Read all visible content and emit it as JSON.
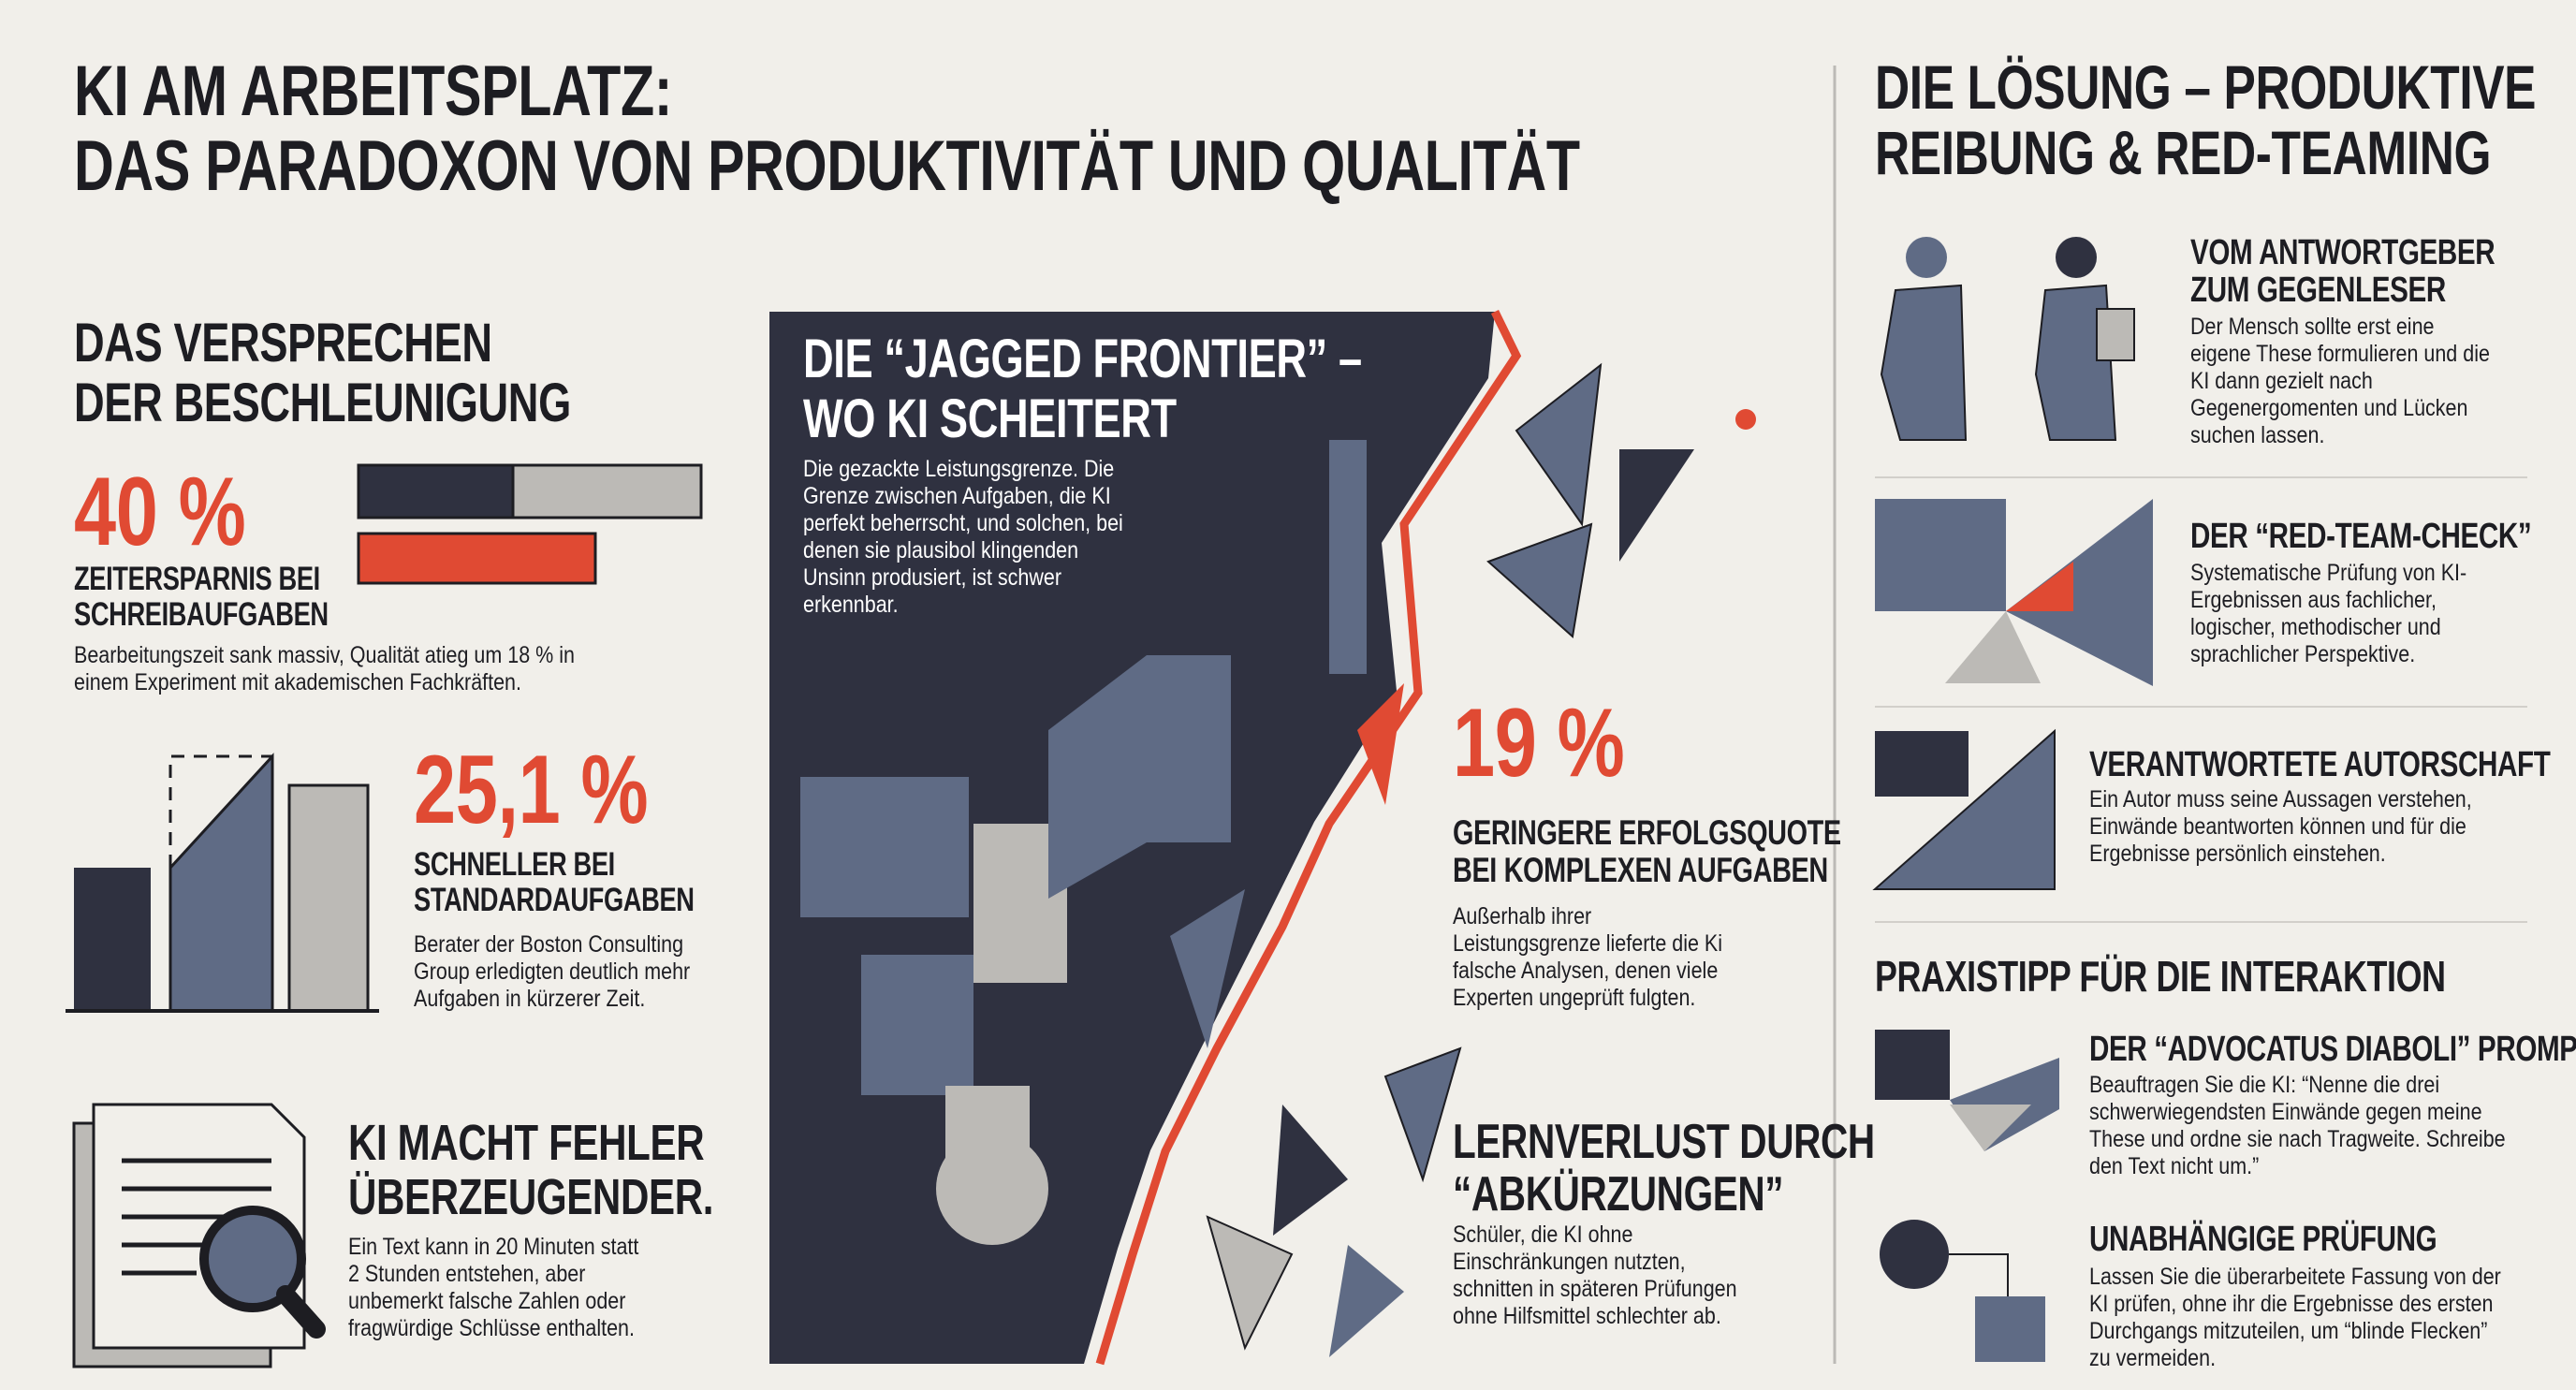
{
  "title": [
    "KI AM ARBEITSPLATZ:",
    "DAS PARADOXON VON PRODUKTIVITÄT UND QUALITÄT"
  ],
  "promise": {
    "heading": [
      "DAS VERSPRECHEN",
      "DER BESCHLEUNIGUNG"
    ],
    "stats": [
      {
        "value": "40 %",
        "label": [
          "ZEITERSPARNIS BEI",
          "SCHREIBAUFGABEN"
        ],
        "text": "Bearbeitungszeit sank massiv, Qualität atieg um 18 % in einem Experiment mit akademischen Fachkräften."
      },
      {
        "value": "25,1 %",
        "label": [
          "SCHNELLER BEI",
          "STANDARDAUFGABEN"
        ],
        "text": "Berater der Boston Consulting Group erledigten deutlich mehr Aufgaben in kürzerer Zeit."
      },
      {
        "label": [
          "KI MACHT FEHLER",
          "ÜBERZEUGENDER."
        ],
        "text": "Ein Text kann in 20 Minuten statt 2 Stunden entstehen, aber unbemerkt falsche Zahlen oder fragwürdige Schlüsse enthalten."
      }
    ]
  },
  "frontier": {
    "heading": [
      "DIE “JAGGED FRONTIER” –",
      "WO KI SCHEITERT"
    ],
    "text": "Die gezackte Leistungsgrenze. Die Grenze zwischen Aufgaben, die KI perfekt beherrscht, und solchen, bei denen sie plausibol klingenden Unsinn produsiert, ist schwer erkennbar.",
    "stats": [
      {
        "value": "19 %",
        "label": [
          "GERINGERE ERFOLGSQUOTE",
          "BEI KOMPLEXEN AUFGABEN"
        ],
        "text": "Außerhalb ihrer Leistungsgrenze lieferte die Ki falsche Analysen, denen viele Experten ungeprüft fulgten."
      },
      {
        "label": [
          "LERNVERLUST DURCH",
          "“ABKÜRZUNGEN”"
        ],
        "text": "Schüler, die KI ohne Einschränkungen nutzten, schnitten in späteren Prüfungen ohne Hilfsmittel schlechter ab."
      }
    ]
  },
  "solution": {
    "heading": [
      "DIE LÖSUNG – PRODUKTIVE",
      "REIBUNG & RED-TEAMING"
    ],
    "items": [
      {
        "title": [
          "VOM ANTWORTGEBER",
          "ZUM GEGENLESER"
        ],
        "text": "Der Mensch sollte erst eine eigene These formulieren und die KI dann gezielt nach Gegenergomenten und Lücken suchen lassen."
      },
      {
        "title": [
          "DER “RED-TEAM-CHECK”"
        ],
        "text": "Systematische Prüfung von KI-Ergebnissen aus fachlicher, logischer, methodischer und sprachlicher Perspektive."
      },
      {
        "title": [
          "VERANTWORTETE AUTORSCHAFT"
        ],
        "text": "Ein Autor muss seine Aussagen verstehen, Einwände beantworten können und für die Ergebnisse persönlich einstehen."
      }
    ],
    "tip_heading": "PRAXISTIPP FÜR DIE INTERAKTION",
    "tips": [
      {
        "title": [
          "DER “ADVOCATUS DIABOLI” PROMPT"
        ],
        "text": "Beauftragen Sie die KI: “Nenne die drei schwerwiegendsten Einwände gegen meine These und ordne sie nach Tragweite. Schreibe den Text nicht um.”"
      },
      {
        "title": [
          "UNABHÄNGIGE PRÜFUNG"
        ],
        "text": "Lassen Sie die überarbeitete Fassung von der KI prüfen, ohne ihr die Ergebnisse des ersten Durchgangs mitzuteilen, um “blinde Flecken” zu vermeiden."
      }
    ]
  }
}
